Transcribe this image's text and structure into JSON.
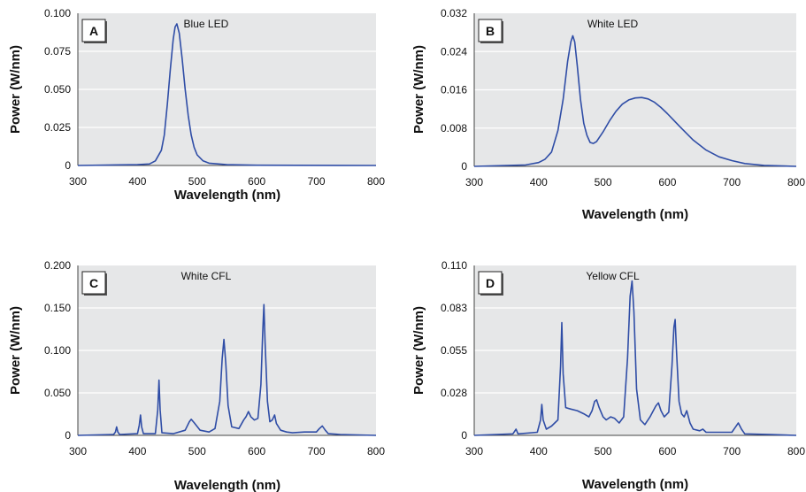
{
  "colors": {
    "plot_bg": "#e6e7e8",
    "grid": "#ffffff",
    "line": "#2f4da6",
    "axis": "#444444"
  },
  "chart_data": [
    {
      "type": "line",
      "panel": "A",
      "title": "Blue LED",
      "xlabel": "Wavelength (nm)",
      "ylabel": "Power (W/nm)",
      "xlim": [
        300,
        800
      ],
      "ylim": [
        0,
        0.1
      ],
      "x_ticks": [
        "300",
        "400",
        "500",
        "600",
        "700",
        "800"
      ],
      "y_ticks": [
        "0",
        "0.025",
        "0.050",
        "0.075",
        "0.100"
      ],
      "grid": true,
      "series": [
        {
          "values": [
            [
              300,
              0
            ],
            [
              400,
              0.0005
            ],
            [
              420,
              0.001
            ],
            [
              430,
              0.003
            ],
            [
              440,
              0.01
            ],
            [
              445,
              0.02
            ],
            [
              450,
              0.04
            ],
            [
              455,
              0.063
            ],
            [
              460,
              0.083
            ],
            [
              463,
              0.091
            ],
            [
              466,
              0.093
            ],
            [
              470,
              0.087
            ],
            [
              475,
              0.07
            ],
            [
              480,
              0.05
            ],
            [
              485,
              0.033
            ],
            [
              490,
              0.02
            ],
            [
              495,
              0.012
            ],
            [
              500,
              0.007
            ],
            [
              510,
              0.003
            ],
            [
              520,
              0.0015
            ],
            [
              550,
              0.0005
            ],
            [
              600,
              0.0002
            ],
            [
              800,
              0
            ]
          ]
        }
      ]
    },
    {
      "type": "line",
      "panel": "B",
      "title": "White LED",
      "xlabel": "Wavelength (nm)",
      "ylabel": "Power (W/nm)",
      "xlim": [
        300,
        800
      ],
      "ylim": [
        0,
        0.032
      ],
      "x_ticks": [
        "300",
        "400",
        "500",
        "600",
        "700",
        "800"
      ],
      "y_ticks": [
        "0",
        "0.008",
        "0.016",
        "0.024",
        "0.032"
      ],
      "grid": true,
      "series": [
        {
          "values": [
            [
              300,
              0
            ],
            [
              380,
              0.0003
            ],
            [
              400,
              0.0008
            ],
            [
              410,
              0.0015
            ],
            [
              420,
              0.003
            ],
            [
              430,
              0.0075
            ],
            [
              438,
              0.014
            ],
            [
              445,
              0.022
            ],
            [
              450,
              0.026
            ],
            [
              453,
              0.0273
            ],
            [
              456,
              0.026
            ],
            [
              460,
              0.021
            ],
            [
              465,
              0.014
            ],
            [
              470,
              0.009
            ],
            [
              475,
              0.0065
            ],
            [
              480,
              0.005
            ],
            [
              485,
              0.0048
            ],
            [
              490,
              0.0052
            ],
            [
              500,
              0.0072
            ],
            [
              510,
              0.0095
            ],
            [
              520,
              0.0115
            ],
            [
              530,
              0.013
            ],
            [
              540,
              0.0139
            ],
            [
              550,
              0.0143
            ],
            [
              560,
              0.0144
            ],
            [
              570,
              0.0141
            ],
            [
              580,
              0.0134
            ],
            [
              590,
              0.0123
            ],
            [
              600,
              0.011
            ],
            [
              620,
              0.0082
            ],
            [
              640,
              0.0055
            ],
            [
              660,
              0.0034
            ],
            [
              680,
              0.002
            ],
            [
              700,
              0.0012
            ],
            [
              720,
              0.0006
            ],
            [
              750,
              0.0002
            ],
            [
              800,
              0
            ]
          ]
        }
      ]
    },
    {
      "type": "line",
      "panel": "C",
      "title": "White CFL",
      "xlabel": "Wavelength (nm)",
      "ylabel": "Power (W/nm)",
      "xlim": [
        300,
        800
      ],
      "ylim": [
        0,
        0.2
      ],
      "x_ticks": [
        "300",
        "400",
        "500",
        "600",
        "700",
        "800"
      ],
      "y_ticks": [
        "0",
        "0.050",
        "0.100",
        "0.150",
        "0.200"
      ],
      "grid": true,
      "series": [
        {
          "values": [
            [
              300,
              0
            ],
            [
              360,
              0.001
            ],
            [
              363,
              0.004
            ],
            [
              365,
              0.01
            ],
            [
              367,
              0.004
            ],
            [
              370,
              0.001
            ],
            [
              400,
              0.002
            ],
            [
              403,
              0.012
            ],
            [
              405,
              0.024
            ],
            [
              407,
              0.01
            ],
            [
              410,
              0.002
            ],
            [
              430,
              0.002
            ],
            [
              434,
              0.03
            ],
            [
              436,
              0.065
            ],
            [
              438,
              0.03
            ],
            [
              441,
              0.003
            ],
            [
              460,
              0.002
            ],
            [
              480,
              0.006
            ],
            [
              487,
              0.016
            ],
            [
              490,
              0.019
            ],
            [
              495,
              0.015
            ],
            [
              505,
              0.006
            ],
            [
              520,
              0.004
            ],
            [
              530,
              0.008
            ],
            [
              538,
              0.04
            ],
            [
              542,
              0.09
            ],
            [
              545,
              0.113
            ],
            [
              548,
              0.085
            ],
            [
              552,
              0.035
            ],
            [
              558,
              0.01
            ],
            [
              570,
              0.008
            ],
            [
              578,
              0.018
            ],
            [
              582,
              0.022
            ],
            [
              586,
              0.028
            ],
            [
              590,
              0.022
            ],
            [
              596,
              0.018
            ],
            [
              602,
              0.02
            ],
            [
              607,
              0.06
            ],
            [
              610,
              0.12
            ],
            [
              612,
              0.154
            ],
            [
              614,
              0.11
            ],
            [
              618,
              0.04
            ],
            [
              622,
              0.016
            ],
            [
              626,
              0.018
            ],
            [
              630,
              0.024
            ],
            [
              633,
              0.014
            ],
            [
              640,
              0.006
            ],
            [
              650,
              0.004
            ],
            [
              660,
              0.003
            ],
            [
              680,
              0.004
            ],
            [
              700,
              0.004
            ],
            [
              705,
              0.008
            ],
            [
              710,
              0.011
            ],
            [
              715,
              0.006
            ],
            [
              720,
              0.002
            ],
            [
              740,
              0.001
            ],
            [
              800,
              0
            ]
          ]
        }
      ]
    },
    {
      "type": "line",
      "panel": "D",
      "title": "Yellow CFL",
      "xlabel": "Wavelength (nm)",
      "ylabel": "Power (W/nm)",
      "xlim": [
        300,
        800
      ],
      "ylim": [
        0,
        0.11
      ],
      "x_ticks": [
        "300",
        "400",
        "500",
        "600",
        "700",
        "800"
      ],
      "y_ticks": [
        "0",
        "0.028",
        "0.055",
        "0.083",
        "0.110"
      ],
      "grid": true,
      "series": [
        {
          "values": [
            [
              300,
              0
            ],
            [
              360,
              0.001
            ],
            [
              365,
              0.004
            ],
            [
              368,
              0.001
            ],
            [
              398,
              0.002
            ],
            [
              403,
              0.01
            ],
            [
              405,
              0.02
            ],
            [
              407,
              0.01
            ],
            [
              412,
              0.004
            ],
            [
              420,
              0.006
            ],
            [
              430,
              0.01
            ],
            [
              434,
              0.045
            ],
            [
              436,
              0.073
            ],
            [
              438,
              0.04
            ],
            [
              442,
              0.018
            ],
            [
              450,
              0.017
            ],
            [
              460,
              0.016
            ],
            [
              470,
              0.014
            ],
            [
              478,
              0.012
            ],
            [
              483,
              0.016
            ],
            [
              487,
              0.022
            ],
            [
              490,
              0.023
            ],
            [
              494,
              0.018
            ],
            [
              500,
              0.012
            ],
            [
              505,
              0.01
            ],
            [
              512,
              0.012
            ],
            [
              518,
              0.011
            ],
            [
              525,
              0.008
            ],
            [
              532,
              0.012
            ],
            [
              538,
              0.05
            ],
            [
              542,
              0.09
            ],
            [
              545,
              0.1
            ],
            [
              548,
              0.08
            ],
            [
              552,
              0.03
            ],
            [
              558,
              0.01
            ],
            [
              565,
              0.007
            ],
            [
              573,
              0.012
            ],
            [
              578,
              0.016
            ],
            [
              582,
              0.019
            ],
            [
              586,
              0.021
            ],
            [
              590,
              0.016
            ],
            [
              595,
              0.012
            ],
            [
              602,
              0.015
            ],
            [
              607,
              0.045
            ],
            [
              610,
              0.07
            ],
            [
              612,
              0.075
            ],
            [
              614,
              0.055
            ],
            [
              618,
              0.022
            ],
            [
              622,
              0.014
            ],
            [
              626,
              0.012
            ],
            [
              630,
              0.016
            ],
            [
              635,
              0.008
            ],
            [
              640,
              0.004
            ],
            [
              650,
              0.003
            ],
            [
              655,
              0.004
            ],
            [
              660,
              0.002
            ],
            [
              680,
              0.002
            ],
            [
              700,
              0.002
            ],
            [
              705,
              0.005
            ],
            [
              710,
              0.008
            ],
            [
              715,
              0.004
            ],
            [
              720,
              0.001
            ],
            [
              760,
              0.0005
            ],
            [
              800,
              0
            ]
          ]
        }
      ]
    }
  ]
}
